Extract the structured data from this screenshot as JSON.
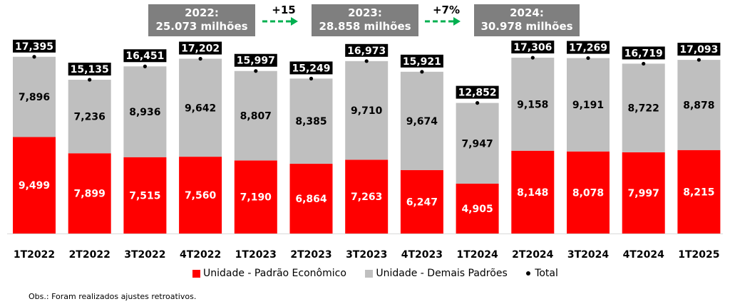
{
  "chart_data": {
    "type": "bar",
    "stacked": true,
    "categories": [
      "1T2022",
      "2T2022",
      "3T2022",
      "4T2022",
      "1T2023",
      "2T2023",
      "3T2023",
      "4T2023",
      "1T2024",
      "2T2024",
      "3T2024",
      "4T2024",
      "1T2025"
    ],
    "series": [
      {
        "name": "Unidade - Padrão Econômico",
        "color": "#ff0000",
        "values": [
          9499,
          7899,
          7515,
          7560,
          7190,
          6864,
          7263,
          6247,
          4905,
          8148,
          8078,
          7997,
          8215
        ],
        "labels": [
          "9,499",
          "7,899",
          "7,515",
          "7,560",
          "7,190",
          "6,864",
          "7,263",
          "6,247",
          "4,905",
          "8,148",
          "8,078",
          "7,997",
          "8,215"
        ]
      },
      {
        "name": "Unidade - Demais Padrões",
        "color": "#bfbfbf",
        "values": [
          7896,
          7236,
          8936,
          9642,
          8807,
          8385,
          9710,
          9674,
          7947,
          9158,
          9191,
          8722,
          8878
        ],
        "labels": [
          "7,896",
          "7,236",
          "8,936",
          "9,642",
          "8,807",
          "8,385",
          "9,710",
          "9,674",
          "7,947",
          "9,158",
          "9,191",
          "8,722",
          "8,878"
        ]
      }
    ],
    "totals": {
      "name": "Total",
      "values": [
        17395,
        15135,
        16451,
        17202,
        15997,
        15249,
        16973,
        15921,
        12852,
        17306,
        17269,
        16719,
        17093
      ],
      "labels": [
        "17,395",
        "15,135",
        "16,451",
        "17,202",
        "15,997",
        "15,249",
        "16,973",
        "15,921",
        "12,852",
        "17,306",
        "17,269",
        "16,719",
        "17,093"
      ]
    },
    "ylim": [
      0,
      18500
    ],
    "legend_position": "bottom",
    "annotations": {
      "years": [
        {
          "line1": "2022:",
          "line2": "25.073 milhões"
        },
        {
          "line1": "2023:",
          "line2": "28.858 milhões"
        },
        {
          "line1": "2024:",
          "line2": "30.978 milhões"
        }
      ],
      "growth": [
        "+15",
        "+7%"
      ]
    }
  },
  "colors": {
    "red": "#ff0000",
    "gray": "#bfbfbf",
    "annotation_box": "#7f7f7f",
    "arrow": "#00b050"
  },
  "legend": {
    "red_label": "Unidade - Padrão Econômico",
    "gray_label": "Unidade - Demais Padrões",
    "total_label": "Total"
  },
  "note": "Obs.: Foram realizados ajustes retroativos."
}
